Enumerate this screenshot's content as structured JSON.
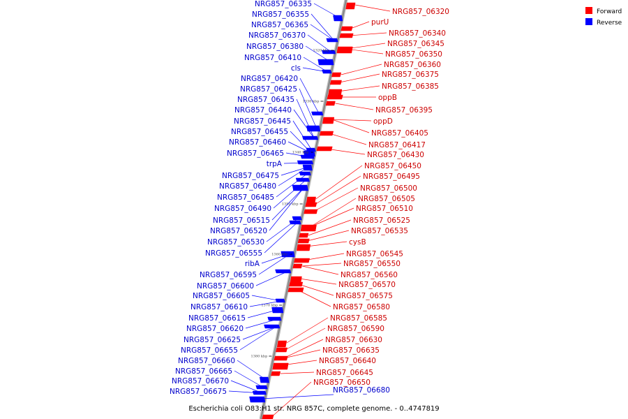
{
  "caption": "Escherichia coli O83:H1 str. NRG 857C, complete genome. - 0..4747819",
  "legend": [
    {
      "label": "Forward",
      "color": "#ff0000"
    },
    {
      "label": "Reverse",
      "color": "#0000ff"
    }
  ],
  "colors": {
    "forward": "#ff0000",
    "reverse": "#0000ff",
    "backbone": "#888888"
  },
  "ticks": [
    "1320 kbp",
    "1330 kbp",
    "1340 kbp",
    "1350 kbp",
    "1360 kbp",
    "1370 kbp",
    "1380 kbp"
  ],
  "reverse_genes": [
    "NRG857_06335",
    "NRG857_06355",
    "NRG857_06365",
    "NRG857_06370",
    "NRG857_06380",
    "NRG857_06410",
    "cls",
    "NRG857_06420",
    "NRG857_06425",
    "NRG857_06435",
    "NRG857_06440",
    "NRG857_06445",
    "NRG857_06455",
    "NRG857_06460",
    "NRG857_06465",
    "trpA",
    "NRG857_06475",
    "NRG857_06480",
    "NRG857_06485",
    "NRG857_06490",
    "NRG857_06515",
    "NRG857_06520",
    "NRG857_06530",
    "NRG857_06555",
    "ribA",
    "NRG857_06595",
    "NRG857_06600",
    "NRG857_06605",
    "NRG857_06610",
    "NRG857_06615",
    "NRG857_06620",
    "NRG857_06625",
    "NRG857_06655",
    "NRG857_06660",
    "NRG857_06665",
    "NRG857_06670",
    "NRG857_06675",
    "NRG857_06680"
  ],
  "forward_genes": [
    "NRG857_06320",
    "purU",
    "NRG857_06340",
    "NRG857_06345",
    "NRG857_06350",
    "NRG857_06360",
    "NRG857_06375",
    "NRG857_06385",
    "oppB",
    "NRG857_06395",
    "oppD",
    "NRG857_06405",
    "NRG857_06417",
    "NRG857_06430",
    "NRG857_06450",
    "NRG857_06495",
    "NRG857_06500",
    "NRG857_06505",
    "NRG857_06510",
    "NRG857_06525",
    "NRG857_06535",
    "cysB",
    "NRG857_06545",
    "NRG857_06550",
    "NRG857_06560",
    "NRG857_06570",
    "NRG857_06575",
    "NRG857_06580",
    "NRG857_06585",
    "NRG857_06590",
    "NRG857_06630",
    "NRG857_06635",
    "NRG857_06640",
    "NRG857_06645",
    "NRG857_06650"
  ]
}
